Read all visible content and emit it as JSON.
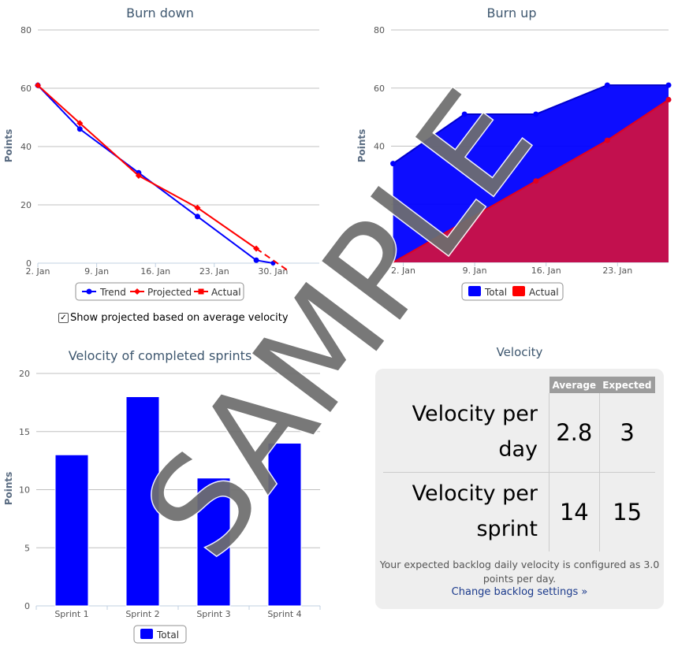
{
  "burn_down": {
    "title": "Burn down",
    "ylabel": "Points",
    "legend": [
      "Trend",
      "Projected",
      "Actual"
    ],
    "checkbox_label": "Show projected based on average velocity"
  },
  "burn_up": {
    "title": "Burn up",
    "ylabel": "Points",
    "legend": [
      "Total",
      "Actual"
    ]
  },
  "velocity_chart": {
    "title": "Velocity of completed sprints",
    "ylabel": "Points",
    "legend": [
      "Total"
    ]
  },
  "velocity_card": {
    "title": "Velocity",
    "col_average": "Average",
    "col_expected": "Expected",
    "rows": [
      {
        "label_line1": "Velocity per",
        "label_line2": "day",
        "average": "2.8",
        "expected": "3"
      },
      {
        "label_line1": "Velocity per",
        "label_line2": "sprint",
        "average": "14",
        "expected": "15"
      }
    ],
    "note": "Your expected backlog daily velocity is configured as 3.0 points per day.",
    "link": "Change backlog settings »"
  },
  "watermark": "SAMPLE",
  "colors": {
    "blue": "#0000FF",
    "red": "#FF0000",
    "crimson": "#CC1144",
    "title": "#3E576F"
  },
  "chart_data": [
    {
      "type": "line",
      "title": "Burn down",
      "ylabel": "Points",
      "ylim": [
        0,
        80
      ],
      "yticks": [
        0,
        20,
        40,
        60,
        80
      ],
      "x_ticks": [
        "2. Jan",
        "9. Jan",
        "16. Jan",
        "23. Jan",
        "30. Jan"
      ],
      "x_tick_days": [
        0,
        7,
        14,
        21,
        28
      ],
      "xlim_days": [
        0,
        33.5
      ],
      "grid": true,
      "legend": "bottom-center",
      "series": [
        {
          "name": "Trend",
          "color": "#0000FF",
          "x_days": [
            0,
            5,
            12,
            19,
            26,
            28
          ],
          "values": [
            61,
            46,
            31,
            16,
            1,
            0
          ]
        },
        {
          "name": "Projected",
          "color": "#FF0000",
          "x_days": [
            0,
            5,
            12,
            19,
            26
          ],
          "values": [
            61,
            48,
            30,
            19,
            5
          ]
        },
        {
          "name": "Actual",
          "color": "#FF0000",
          "dashed": true,
          "x_days": [
            26,
            30
          ],
          "values": [
            5,
            -3
          ]
        }
      ]
    },
    {
      "type": "area",
      "title": "Burn up",
      "ylabel": "Points",
      "ylim": [
        0,
        80
      ],
      "yticks": [
        40,
        60,
        80
      ],
      "x_ticks": [
        "2. Jan",
        "9. Jan",
        "16. Jan",
        "23. Jan"
      ],
      "x_tick_days": [
        0,
        7,
        14,
        21
      ],
      "xlim_days": [
        -1.2,
        26
      ],
      "grid": true,
      "legend": "bottom-center",
      "series": [
        {
          "name": "Total",
          "color": "#0000FF",
          "x_days": [
            -1,
            6,
            13,
            20,
            26
          ],
          "values": [
            34,
            51,
            51,
            61,
            61
          ]
        },
        {
          "name": "Actual",
          "color": "#CC1144",
          "x_days": [
            -1,
            13,
            20,
            26
          ],
          "values": [
            0,
            28,
            42,
            56
          ]
        }
      ]
    },
    {
      "type": "bar",
      "title": "Velocity of completed sprints",
      "ylabel": "Points",
      "ylim": [
        0,
        20
      ],
      "yticks": [
        0,
        5,
        10,
        15,
        20
      ],
      "categories": [
        "Sprint 1",
        "Sprint 2",
        "Sprint 3",
        "Sprint 4"
      ],
      "grid": true,
      "legend": "bottom-center",
      "series": [
        {
          "name": "Total",
          "color": "#0000FF",
          "values": [
            13,
            18,
            11,
            14
          ]
        }
      ]
    }
  ]
}
